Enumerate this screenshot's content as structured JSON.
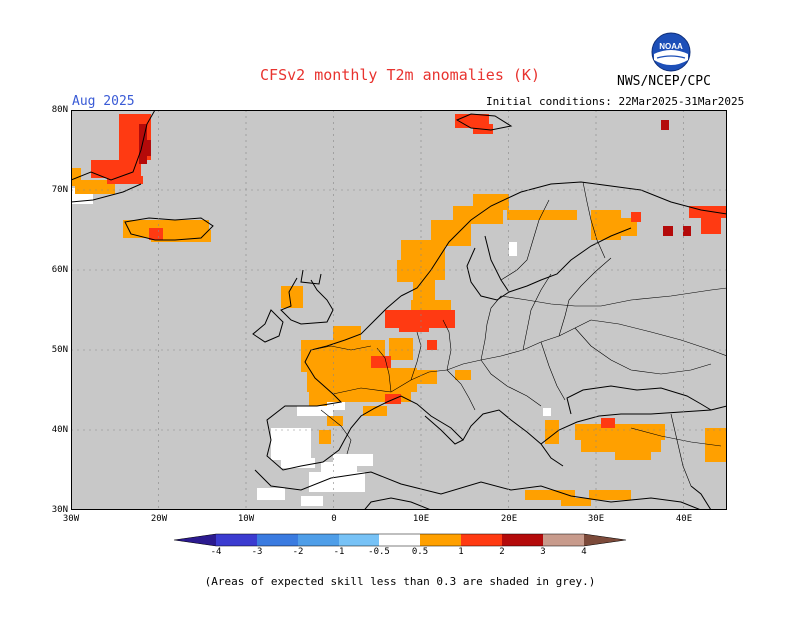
{
  "header": {
    "title": "CFSv2 monthly T2m anomalies (K)",
    "period": "Aug 2025",
    "initial_conditions": "Initial conditions: 22Mar2025-31Mar2025",
    "agency": "NWS/NCEP/CPC",
    "logo_text": "NOAA"
  },
  "map": {
    "lat_labels": [
      "80N",
      "70N",
      "60N",
      "50N",
      "40N",
      "30N"
    ],
    "lon_labels": [
      "30W",
      "20W",
      "10W",
      "0",
      "10E",
      "20E",
      "30E",
      "40E"
    ],
    "background_grey": "#c8c8c8",
    "coastline_color": "#000000"
  },
  "colorbar": {
    "labels": [
      "-4",
      "-3",
      "-2",
      "-1",
      "-0.5",
      "0.5",
      "1",
      "2",
      "3",
      "4"
    ],
    "colors": [
      "#2b1a8f",
      "#3b3bd0",
      "#3a7be0",
      "#4f9ee8",
      "#77c2f6",
      "#ffffff",
      "#ffa000",
      "#ff3a12",
      "#b40a0a",
      "#c89b8c",
      "#7c4a3a"
    ]
  },
  "footnote": "(Areas of expected skill less than 0.3 are shaded in grey.)"
}
